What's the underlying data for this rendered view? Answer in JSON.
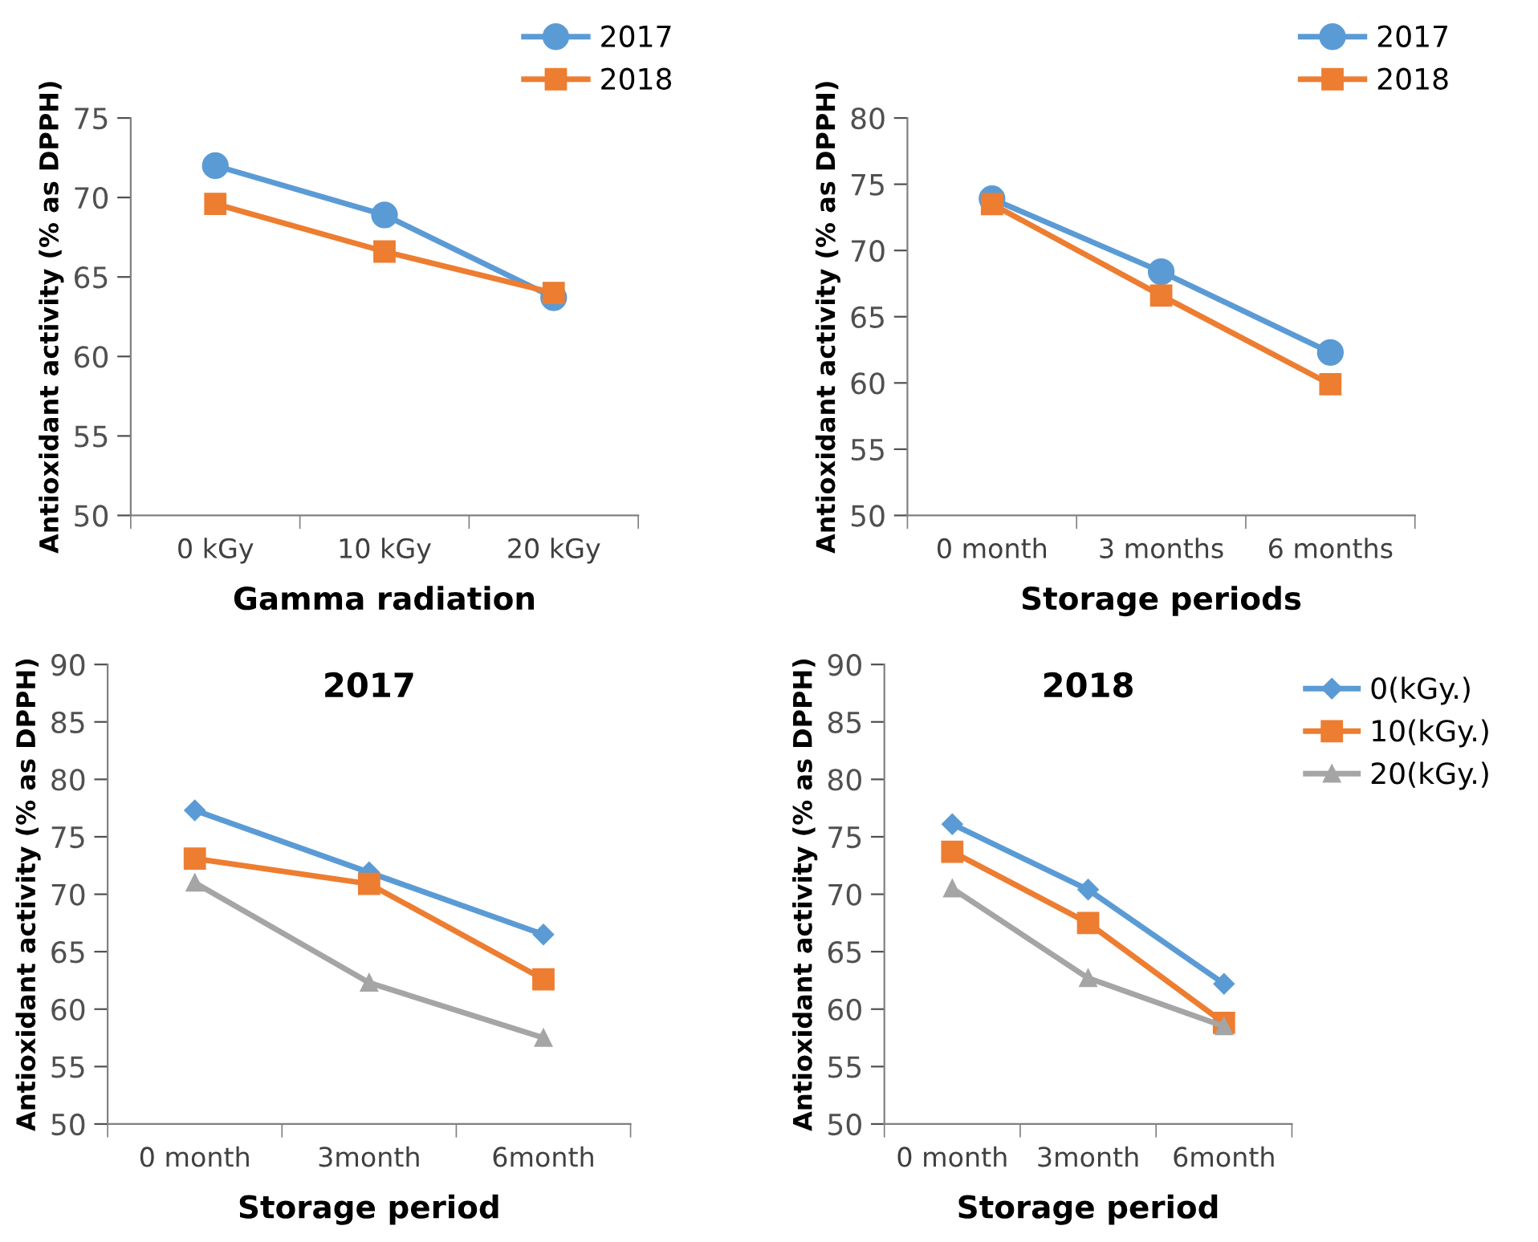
{
  "chart_data": [
    {
      "type": "line",
      "xlabel": "Gamma radiation",
      "ylabel": "Antioxidant activity (% as DPPH)",
      "categories": [
        "0 kGy",
        "10 kGy",
        "20 kGy"
      ],
      "ylim": [
        50,
        75
      ],
      "yticks": [
        50,
        55,
        60,
        65,
        70,
        75
      ],
      "legend": "top right",
      "series": [
        {
          "name": "2017",
          "color": "#5b9bd5",
          "marker": "circle",
          "values": [
            72.0,
            68.9,
            63.7
          ]
        },
        {
          "name": "2018",
          "color": "#ed7d31",
          "marker": "square",
          "values": [
            69.6,
            66.6,
            64.0
          ]
        }
      ]
    },
    {
      "type": "line",
      "xlabel": "Storage periods",
      "ylabel": "Antioxidant activity (% as DPPH)",
      "categories": [
        "0 month",
        "3 months",
        "6 months"
      ],
      "ylim": [
        50,
        80
      ],
      "yticks": [
        50,
        55,
        60,
        65,
        70,
        75,
        80
      ],
      "legend": "top right",
      "series": [
        {
          "name": "2017",
          "color": "#5b9bd5",
          "marker": "circle",
          "values": [
            73.9,
            68.4,
            62.3
          ]
        },
        {
          "name": "2018",
          "color": "#ed7d31",
          "marker": "square",
          "values": [
            73.5,
            66.6,
            59.9
          ]
        }
      ]
    },
    {
      "type": "line",
      "title": "2017",
      "xlabel": "Storage period",
      "ylabel": "Antioxidant activity (% as DPPH)",
      "categories": [
        "0 month",
        "3month",
        "6month"
      ],
      "ylim": [
        50,
        90
      ],
      "yticks": [
        50,
        55,
        60,
        65,
        70,
        75,
        80,
        85,
        90
      ],
      "series": [
        {
          "color": "#5b9bd5",
          "marker": "diamond",
          "values": [
            77.3,
            71.9,
            66.5
          ]
        },
        {
          "color": "#ed7d31",
          "marker": "square",
          "values": [
            73.1,
            70.9,
            62.6
          ]
        },
        {
          "color": "#a5a5a5",
          "marker": "triangle",
          "values": [
            71.0,
            62.3,
            57.5
          ]
        }
      ]
    },
    {
      "type": "line",
      "title": "2018",
      "xlabel": "Storage period",
      "ylabel": "Antioxidant activity (% as DPPH)",
      "categories": [
        "0 month",
        "3month",
        "6month"
      ],
      "ylim": [
        50,
        90
      ],
      "yticks": [
        50,
        55,
        60,
        65,
        70,
        75,
        80,
        85,
        90
      ],
      "legend": "top right",
      "series": [
        {
          "name": "0(kGy.)",
          "color": "#5b9bd5",
          "marker": "diamond",
          "values": [
            76.1,
            70.4,
            62.2
          ]
        },
        {
          "name": "10(kGy.)",
          "color": "#ed7d31",
          "marker": "square",
          "values": [
            73.7,
            67.5,
            58.8
          ]
        },
        {
          "name": "20(kGy.)",
          "color": "#a5a5a5",
          "marker": "triangle",
          "values": [
            70.5,
            62.7,
            58.5
          ]
        }
      ]
    }
  ]
}
